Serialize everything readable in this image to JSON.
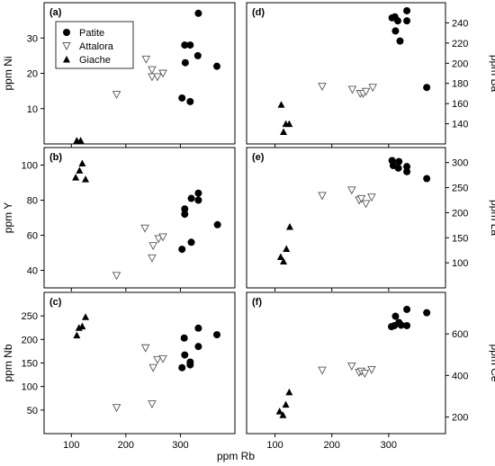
{
  "figure": {
    "xlabel": "ppm Rb",
    "x_ticks": [
      100,
      200,
      300
    ],
    "xlim": [
      50,
      400
    ]
  },
  "legend": {
    "placement": "top-left of panel (a)",
    "entries": [
      {
        "name": "Patite",
        "marker": "filled-circle"
      },
      {
        "name": "Attalora",
        "marker": "open-down-triangle"
      },
      {
        "name": "Giache",
        "marker": "filled-up-triangle"
      }
    ]
  },
  "chart_data": [
    {
      "type": "scatter",
      "panel": "(a)",
      "ylabel": "ppm Ni",
      "xlabel": "ppm Rb",
      "xlim": [
        50,
        400
      ],
      "ylim": [
        0,
        40
      ],
      "y_ticks": [
        10,
        20,
        30
      ],
      "y_axis_side": "left",
      "series": [
        {
          "name": "Patite",
          "marker": "filled-circle",
          "points": [
            [
              308,
              28
            ],
            [
              318,
              28
            ],
            [
              333,
              37
            ],
            [
              332,
              25
            ],
            [
              309,
              23
            ],
            [
              303,
              13
            ],
            [
              318,
              12
            ],
            [
              367,
              22
            ]
          ]
        },
        {
          "name": "Attalora",
          "marker": "open-down-triangle",
          "points": [
            [
              183,
              14
            ],
            [
              237,
              24
            ],
            [
              248,
              21
            ],
            [
              248,
              19
            ],
            [
              258,
              19
            ],
            [
              268,
              20
            ]
          ]
        },
        {
          "name": "Giache",
          "marker": "filled-up-triangle",
          "points": [
            [
              110,
              1
            ],
            [
              117,
              1
            ]
          ]
        }
      ]
    },
    {
      "type": "scatter",
      "panel": "(d)",
      "ylabel": "ppm Ba",
      "xlabel": "ppm Rb",
      "xlim": [
        50,
        400
      ],
      "ylim": [
        120,
        260
      ],
      "y_ticks": [
        140,
        160,
        180,
        200,
        220,
        240
      ],
      "y_axis_side": "right",
      "series": [
        {
          "name": "Patite",
          "marker": "filled-circle",
          "points": [
            [
              306,
              245
            ],
            [
              311,
              246
            ],
            [
              312,
              232
            ],
            [
              316,
              242
            ],
            [
              320,
              222
            ],
            [
              332,
              252
            ],
            [
              332,
              242
            ],
            [
              367,
              176
            ]
          ]
        },
        {
          "name": "Attalora",
          "marker": "open-down-triangle",
          "points": [
            [
              183,
              177
            ],
            [
              236,
              174
            ],
            [
              250,
              170
            ],
            [
              255,
              170
            ],
            [
              260,
              172
            ],
            [
              272,
              176
            ]
          ]
        },
        {
          "name": "Giache",
          "marker": "filled-up-triangle",
          "points": [
            [
              111,
              159
            ],
            [
              115,
              132
            ],
            [
              119,
              140
            ],
            [
              125,
              140
            ]
          ]
        }
      ]
    },
    {
      "type": "scatter",
      "panel": "(b)",
      "ylabel": "ppm Y",
      "xlabel": "ppm Rb",
      "xlim": [
        50,
        400
      ],
      "ylim": [
        30,
        110
      ],
      "y_ticks": [
        40,
        60,
        80,
        100
      ],
      "y_axis_side": "left",
      "series": [
        {
          "name": "Patite",
          "marker": "filled-circle",
          "points": [
            [
              308,
              75
            ],
            [
              308,
              72
            ],
            [
              320,
              81
            ],
            [
              333,
              84
            ],
            [
              333,
              80
            ],
            [
              303,
              52
            ],
            [
              320,
              56
            ],
            [
              368,
              66
            ]
          ]
        },
        {
          "name": "Attalora",
          "marker": "open-down-triangle",
          "points": [
            [
              183,
              37
            ],
            [
              235,
              64
            ],
            [
              248,
              47
            ],
            [
              250,
              54
            ],
            [
              260,
              58
            ],
            [
              268,
              59
            ]
          ]
        },
        {
          "name": "Giache",
          "marker": "filled-up-triangle",
          "points": [
            [
              108,
              93
            ],
            [
              115,
              97
            ],
            [
              120,
              101
            ],
            [
              126,
              92
            ]
          ]
        }
      ]
    },
    {
      "type": "scatter",
      "panel": "(e)",
      "ylabel": "ppm La",
      "xlabel": "ppm Rb",
      "xlim": [
        50,
        400
      ],
      "ylim": [
        50,
        330
      ],
      "y_ticks": [
        100,
        150,
        200,
        250,
        300
      ],
      "y_axis_side": "right",
      "series": [
        {
          "name": "Patite",
          "marker": "filled-circle",
          "points": [
            [
              306,
              304
            ],
            [
              308,
              294
            ],
            [
              318,
              302
            ],
            [
              317,
              289
            ],
            [
              332,
              292
            ],
            [
              332,
              282
            ],
            [
              367,
              268
            ]
          ]
        },
        {
          "name": "Attalora",
          "marker": "open-down-triangle",
          "points": [
            [
              183,
              234
            ],
            [
              235,
              245
            ],
            [
              248,
              225
            ],
            [
              252,
              228
            ],
            [
              260,
              218
            ],
            [
              270,
              231
            ]
          ]
        },
        {
          "name": "Giache",
          "marker": "filled-up-triangle",
          "points": [
            [
              110,
              112
            ],
            [
              115,
              103
            ],
            [
              120,
              128
            ],
            [
              126,
              172
            ]
          ]
        }
      ]
    },
    {
      "type": "scatter",
      "panel": "(c)",
      "ylabel": "ppm Nb",
      "xlabel": "ppm Rb",
      "xlim": [
        50,
        400
      ],
      "ylim": [
        0,
        300
      ],
      "y_ticks": [
        50,
        100,
        150,
        200,
        250
      ],
      "y_axis_side": "left",
      "series": [
        {
          "name": "Patite",
          "marker": "filled-circle",
          "points": [
            [
              307,
              203
            ],
            [
              308,
              167
            ],
            [
              318,
              152
            ],
            [
              318,
              146
            ],
            [
              333,
              224
            ],
            [
              333,
              185
            ],
            [
              303,
              140
            ],
            [
              367,
              210
            ]
          ]
        },
        {
          "name": "Attalora",
          "marker": "open-down-triangle",
          "points": [
            [
              183,
              55
            ],
            [
              236,
              182
            ],
            [
              248,
              63
            ],
            [
              250,
              140
            ],
            [
              258,
              157
            ],
            [
              268,
              159
            ]
          ]
        },
        {
          "name": "Giache",
          "marker": "filled-up-triangle",
          "points": [
            [
              110,
              209
            ],
            [
              114,
              225
            ],
            [
              120,
              228
            ],
            [
              126,
              248
            ]
          ]
        }
      ]
    },
    {
      "type": "scatter",
      "panel": "(f)",
      "ylabel": "ppm Ce",
      "xlabel": "ppm Rb",
      "xlim": [
        50,
        400
      ],
      "ylim": [
        120,
        800
      ],
      "y_ticks": [
        200,
        400,
        600
      ],
      "y_axis_side": "right",
      "series": [
        {
          "name": "Patite",
          "marker": "filled-circle",
          "points": [
            [
              305,
              635
            ],
            [
              310,
              640
            ],
            [
              312,
              685
            ],
            [
              318,
              655
            ],
            [
              322,
              642
            ],
            [
              332,
              640
            ],
            [
              332,
              718
            ],
            [
              367,
              702
            ]
          ]
        },
        {
          "name": "Attalora",
          "marker": "open-down-triangle",
          "points": [
            [
              183,
              425
            ],
            [
              235,
              445
            ],
            [
              248,
              415
            ],
            [
              252,
              420
            ],
            [
              258,
              410
            ],
            [
              270,
              428
            ]
          ]
        },
        {
          "name": "Giache",
          "marker": "filled-up-triangle",
          "points": [
            [
              108,
              228
            ],
            [
              114,
              210
            ],
            [
              119,
              260
            ],
            [
              125,
              320
            ]
          ]
        }
      ]
    }
  ]
}
